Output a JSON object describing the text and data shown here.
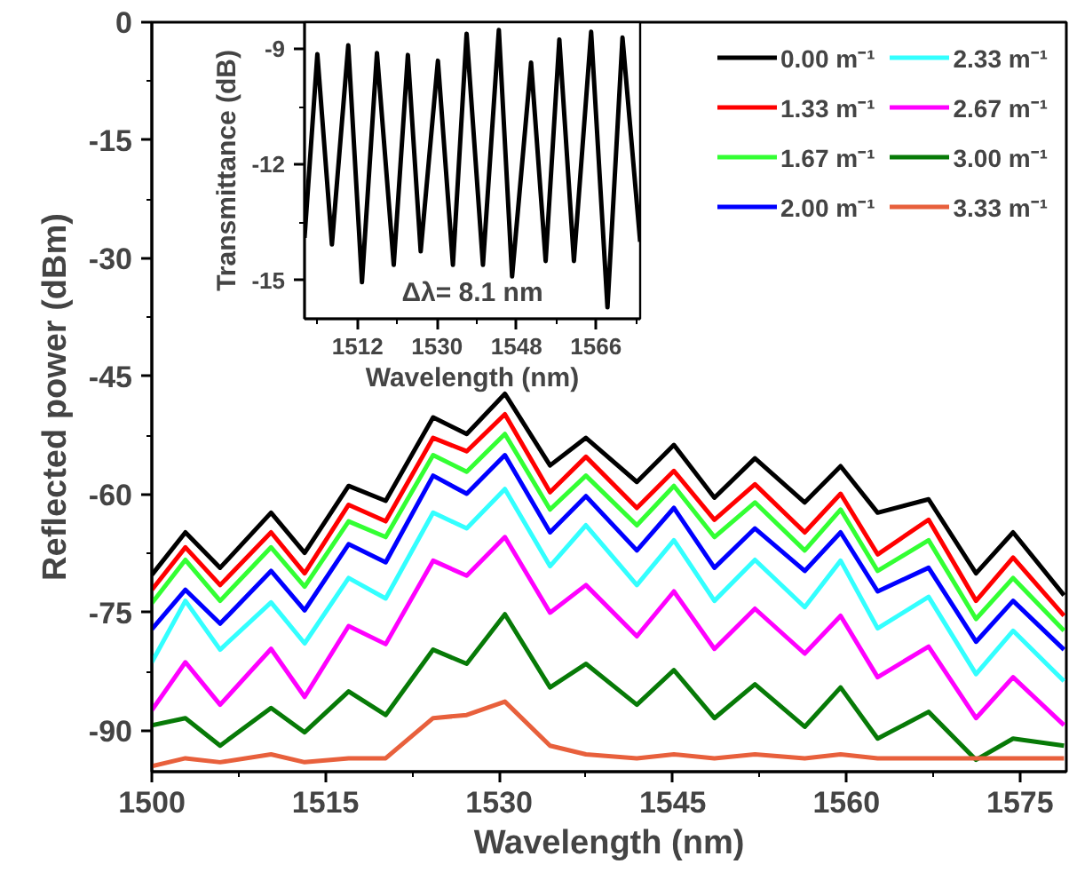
{
  "chart_data": [
    {
      "type": "line",
      "xlabel": "Wavelength (nm)",
      "ylabel": "Reflected power (dBm)",
      "xlim": [
        1500,
        1579
      ],
      "ylim": [
        -95.2,
        0
      ],
      "xticks": [
        1500,
        1515,
        1530,
        1545,
        1560,
        1575
      ],
      "yticks": [
        0,
        -15,
        -30,
        -45,
        -60,
        -75,
        -90
      ],
      "grid": false,
      "legend": "top right",
      "x": [
        1500,
        1502.9,
        1505.9,
        1510.3,
        1513.2,
        1517,
        1520.2,
        1524.3,
        1527.2,
        1530.5,
        1534.4,
        1537.5,
        1541.9,
        1545.1,
        1548.6,
        1552.1,
        1556.4,
        1559.5,
        1562.7,
        1567.1,
        1571.2,
        1574.4,
        1578.8
      ],
      "series": [
        {
          "name": "0.00 m⁻¹",
          "color": "#000000",
          "values": [
            -70.2,
            -64.8,
            -69.3,
            -62.3,
            -67.4,
            -58.9,
            -60.8,
            -50.2,
            -52.3,
            -47.2,
            -56.3,
            -52.8,
            -58.4,
            -53.7,
            -60.4,
            -55.4,
            -61.0,
            -56.4,
            -62.3,
            -60.6,
            -70.0,
            -64.8,
            -72.8
          ]
        },
        {
          "name": "1.33 m⁻¹",
          "color": "#ff0000",
          "values": [
            -72.1,
            -66.7,
            -71.5,
            -64.8,
            -70.0,
            -61.3,
            -63.4,
            -52.8,
            -54.5,
            -49.8,
            -59.7,
            -55.2,
            -61.7,
            -57.0,
            -63.2,
            -58.7,
            -64.8,
            -59.9,
            -67.6,
            -63.2,
            -73.5,
            -68.0,
            -75.4
          ]
        },
        {
          "name": "1.67 m⁻¹",
          "color": "#33ff33",
          "values": [
            -73.8,
            -68.3,
            -73.5,
            -66.7,
            -71.7,
            -63.4,
            -65.4,
            -55.0,
            -57.1,
            -52.3,
            -61.9,
            -57.6,
            -63.9,
            -58.9,
            -65.4,
            -61.0,
            -67.1,
            -61.9,
            -69.7,
            -65.8,
            -75.8,
            -70.6,
            -77.3
          ]
        },
        {
          "name": "2.00 m⁻¹",
          "color": "#0000ff",
          "values": [
            -77.1,
            -72.1,
            -76.4,
            -69.7,
            -74.7,
            -66.3,
            -68.6,
            -57.6,
            -59.9,
            -55.0,
            -64.8,
            -60.2,
            -67.1,
            -61.7,
            -69.3,
            -64.3,
            -69.7,
            -64.8,
            -72.3,
            -69.3,
            -78.7,
            -73.5,
            -79.7
          ]
        },
        {
          "name": "2.33 m⁻¹",
          "color": "#33ffff",
          "values": [
            -81.3,
            -73.5,
            -79.7,
            -73.7,
            -78.9,
            -70.6,
            -73.2,
            -62.3,
            -64.3,
            -59.3,
            -69.1,
            -63.9,
            -71.5,
            -65.8,
            -73.5,
            -68.3,
            -74.3,
            -68.4,
            -77.0,
            -73.0,
            -82.8,
            -77.3,
            -83.7
          ]
        },
        {
          "name": "2.67 m⁻¹",
          "color": "#ff00ff",
          "values": [
            -87.4,
            -81.3,
            -86.7,
            -79.6,
            -85.7,
            -76.7,
            -79.0,
            -68.4,
            -70.3,
            -65.4,
            -75.0,
            -71.5,
            -78.0,
            -72.3,
            -79.6,
            -74.5,
            -80.2,
            -75.4,
            -83.2,
            -79.3,
            -88.4,
            -83.2,
            -89.3
          ]
        },
        {
          "name": "3.00 m⁻¹",
          "color": "#077a07",
          "values": [
            -89.3,
            -88.4,
            -91.9,
            -87.1,
            -90.2,
            -85.0,
            -88.0,
            -79.7,
            -81.5,
            -75.2,
            -84.5,
            -81.5,
            -86.7,
            -82.3,
            -88.4,
            -84.1,
            -89.5,
            -84.5,
            -91.0,
            -87.6,
            -93.7,
            -91.0,
            -91.9
          ]
        },
        {
          "name": "3.33 m⁻¹",
          "color": "#e8603c",
          "values": [
            -94.5,
            -93.5,
            -94.0,
            -93.0,
            -94.0,
            -93.5,
            -93.5,
            -88.4,
            -88.0,
            -86.3,
            -91.9,
            -93.0,
            -93.5,
            -93.0,
            -93.5,
            -93.0,
            -93.5,
            -93.0,
            -93.5,
            -93.5,
            -93.5,
            -93.5,
            -93.5
          ]
        }
      ]
    },
    {
      "type": "line",
      "xlabel": "Wavelength (nm)",
      "ylabel": "Transmittance (dB)",
      "xlim": [
        1500,
        1576
      ],
      "ylim": [
        -16,
        -8.3
      ],
      "xticks": [
        1512,
        1530,
        1548,
        1566
      ],
      "yticks": [
        -9,
        -12,
        -15
      ],
      "grid": false,
      "x": [
        1500,
        1502.9,
        1506.2,
        1509.9,
        1513.0,
        1516.4,
        1520.2,
        1523.4,
        1526.3,
        1530.2,
        1533.6,
        1536.7,
        1540.4,
        1544.0,
        1547.0,
        1551.3,
        1554.6,
        1557.7,
        1561.0,
        1564.9,
        1568.6,
        1572.0,
        1576
      ],
      "series": [
        {
          "color": "#000000",
          "values": [
            -13.9,
            -9.13,
            -14.07,
            -8.9,
            -15.05,
            -9.1,
            -14.6,
            -9.15,
            -14.25,
            -9.3,
            -14.6,
            -8.6,
            -14.6,
            -8.5,
            -14.9,
            -9.35,
            -14.5,
            -8.75,
            -14.5,
            -8.55,
            -15.7,
            -8.7,
            -14.0
          ]
        }
      ],
      "annotations": [
        "Δλ= 8.1 nm"
      ]
    }
  ]
}
